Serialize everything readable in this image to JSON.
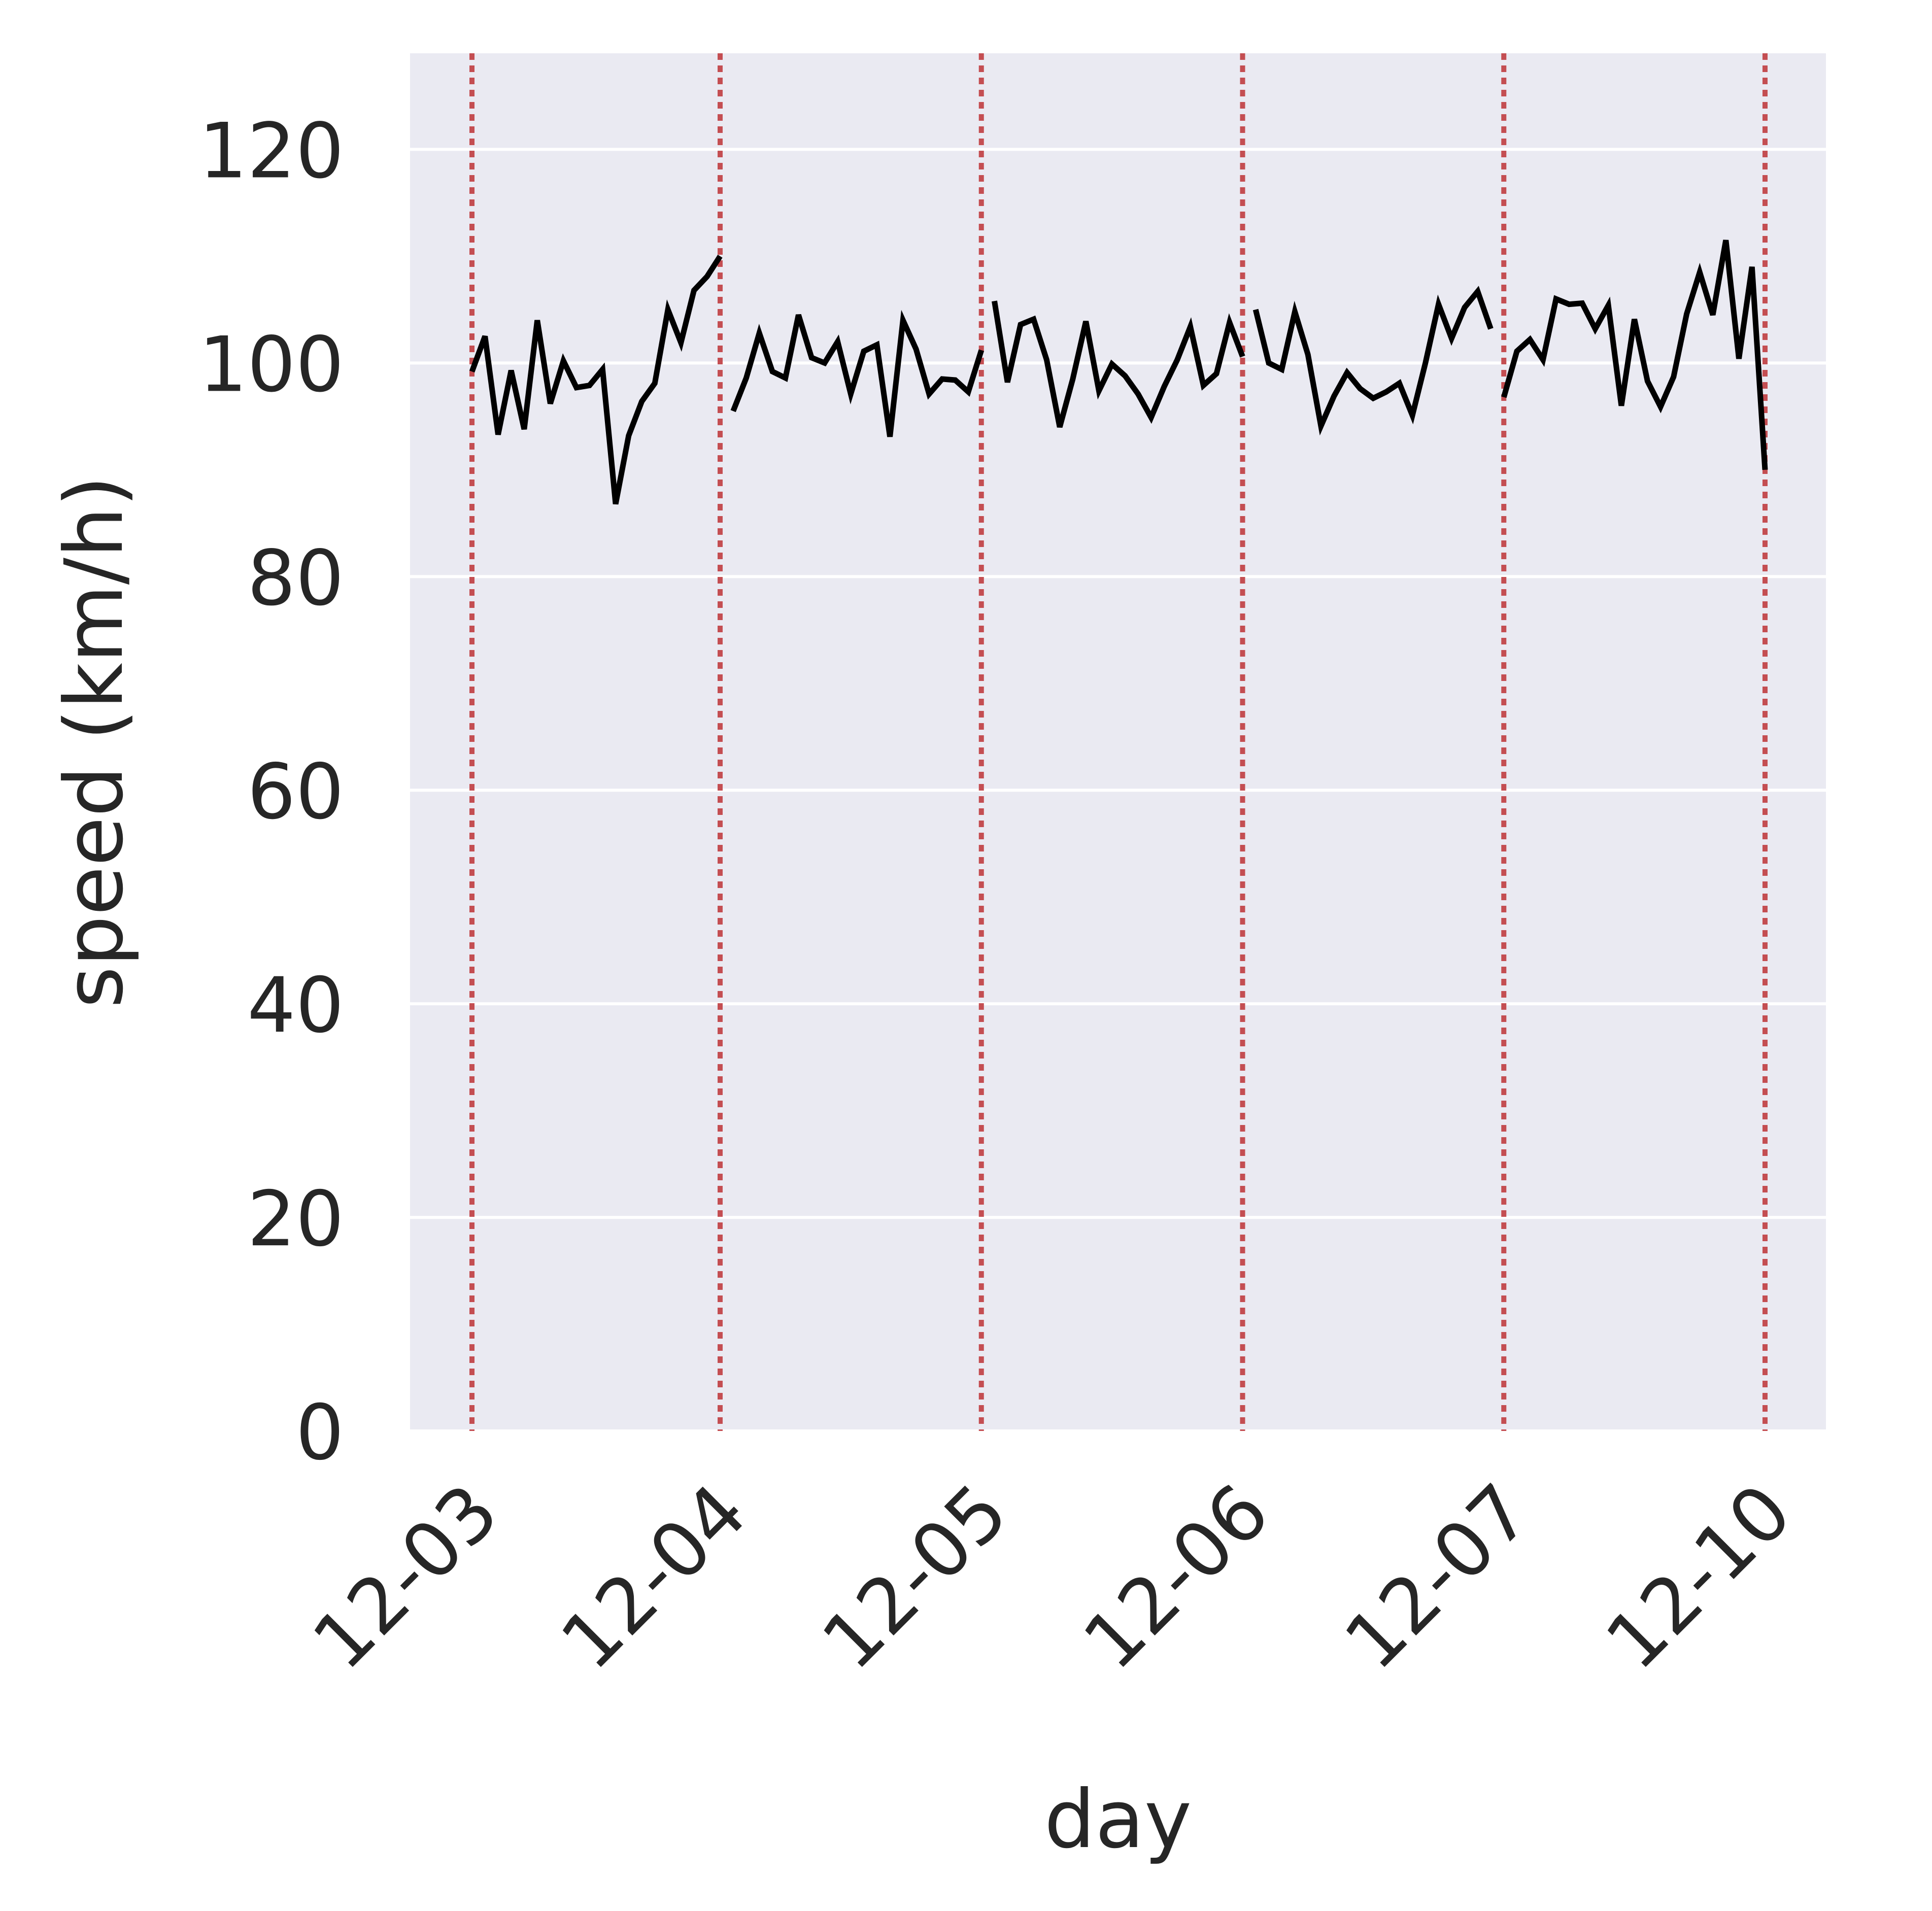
{
  "chart_data": {
    "type": "line",
    "xlabel": "day",
    "ylabel": "speed (km/h)",
    "ylim": [
      0,
      129
    ],
    "yticks": [
      0,
      20,
      40,
      60,
      80,
      100,
      120
    ],
    "grid": "horizontal",
    "background_color": "#eaeaf2",
    "line_color": "#000000",
    "separator_color": "#c44e52",
    "x_tick_labels": [
      "12-03",
      "12-04",
      "12-05",
      "12-06",
      "12-07",
      "12-10"
    ],
    "day_separators": [
      0,
      19,
      39,
      59,
      79,
      99
    ],
    "segments": [
      {
        "day": "12-03",
        "x": [
          0,
          1,
          2,
          3,
          4,
          5,
          6,
          7,
          8,
          9,
          10,
          11,
          12,
          13,
          14,
          15,
          16,
          17,
          18,
          19
        ],
        "values": [
          99.2,
          102.5,
          93.3,
          99.3,
          93.8,
          104.0,
          96.2,
          100.2,
          97.7,
          97.9,
          99.4,
          86.8,
          93.2,
          96.4,
          98.1,
          105.0,
          101.9,
          106.8,
          108.1,
          110.0
        ]
      },
      {
        "day": "12-04",
        "x": [
          20,
          21,
          22,
          23,
          24,
          25,
          26,
          27,
          28,
          29,
          30,
          31,
          32,
          33,
          34,
          35,
          36,
          37,
          38,
          39
        ],
        "values": [
          95.5,
          98.6,
          102.8,
          99.2,
          98.6,
          104.5,
          100.5,
          100.0,
          102.0,
          97.1,
          101.1,
          101.7,
          93.1,
          104.0,
          101.3,
          97.1,
          98.5,
          98.4,
          97.3,
          101.2
        ]
      },
      {
        "day": "12-05",
        "x": [
          40,
          41,
          42,
          43,
          44,
          45,
          46,
          47,
          48,
          49,
          50,
          51,
          52,
          53,
          54,
          55,
          56,
          57,
          58,
          59
        ],
        "values": [
          105.8,
          98.2,
          103.6,
          104.1,
          100.3,
          94.0,
          98.5,
          103.9,
          97.4,
          99.9,
          98.8,
          97.1,
          94.9,
          97.8,
          100.3,
          103.4,
          97.9,
          99.0,
          103.8,
          100.6
        ]
      },
      {
        "day": "12-06",
        "x": [
          60,
          61,
          62,
          63,
          64,
          65,
          66,
          67,
          68,
          69,
          70,
          71,
          72,
          73,
          74,
          75,
          76,
          77,
          78
        ],
        "values": [
          105.0,
          100.0,
          99.4,
          104.8,
          100.8,
          94.1,
          96.9,
          99.1,
          97.6,
          96.7,
          97.3,
          98.1,
          95.1,
          100.0,
          105.5,
          102.3,
          105.2,
          106.7,
          103.2
        ]
      },
      {
        "day": "12-07",
        "x": [
          79,
          80,
          81,
          82,
          83,
          84,
          85,
          86,
          87,
          88,
          89,
          90,
          91,
          92,
          93,
          94,
          95,
          96,
          97,
          98,
          99
        ],
        "values": [
          96.8,
          101.1,
          102.2,
          100.3,
          106.0,
          105.5,
          105.6,
          103.2,
          105.4,
          96.0,
          104.1,
          98.3,
          95.9,
          98.7,
          104.6,
          108.5,
          104.5,
          111.5,
          100.4,
          109.0,
          90.0
        ]
      }
    ]
  }
}
